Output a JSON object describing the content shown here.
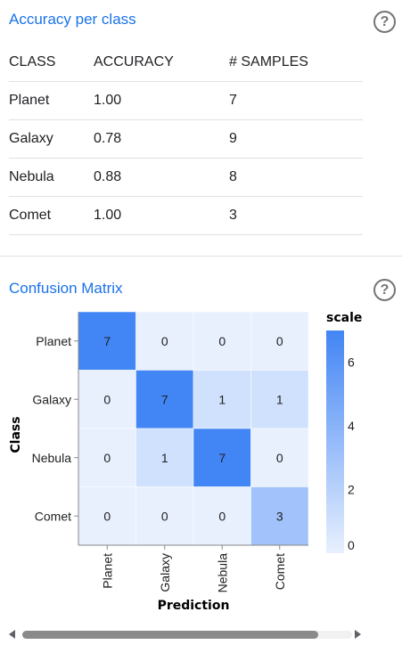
{
  "accuracy": {
    "title": "Accuracy per class",
    "help_glyph": "?",
    "headers": [
      "CLASS",
      "ACCURACY",
      "# SAMPLES"
    ],
    "rows": [
      {
        "class": "Planet",
        "accuracy": "1.00",
        "samples": "7"
      },
      {
        "class": "Galaxy",
        "accuracy": "0.78",
        "samples": "9"
      },
      {
        "class": "Nebula",
        "accuracy": "0.88",
        "samples": "8"
      },
      {
        "class": "Comet",
        "accuracy": "1.00",
        "samples": "3"
      }
    ]
  },
  "confusion": {
    "title": "Confusion Matrix",
    "help_glyph": "?",
    "chart_data": {
      "type": "heatmap",
      "rows": [
        "Planet",
        "Galaxy",
        "Nebula",
        "Comet"
      ],
      "columns": [
        "Planet",
        "Galaxy",
        "Nebula",
        "Comet"
      ],
      "values": [
        [
          7,
          0,
          0,
          0
        ],
        [
          0,
          7,
          1,
          1
        ],
        [
          0,
          1,
          7,
          0
        ],
        [
          0,
          0,
          0,
          3
        ]
      ],
      "xlabel": "Prediction",
      "ylabel": "Class",
      "legend_title": "scale",
      "legend_ticks": [
        "0",
        "2",
        "4",
        "6"
      ],
      "scale_domain": [
        0,
        7
      ],
      "color_low": "#e8f0fe",
      "color_high": "#4285f4"
    }
  }
}
